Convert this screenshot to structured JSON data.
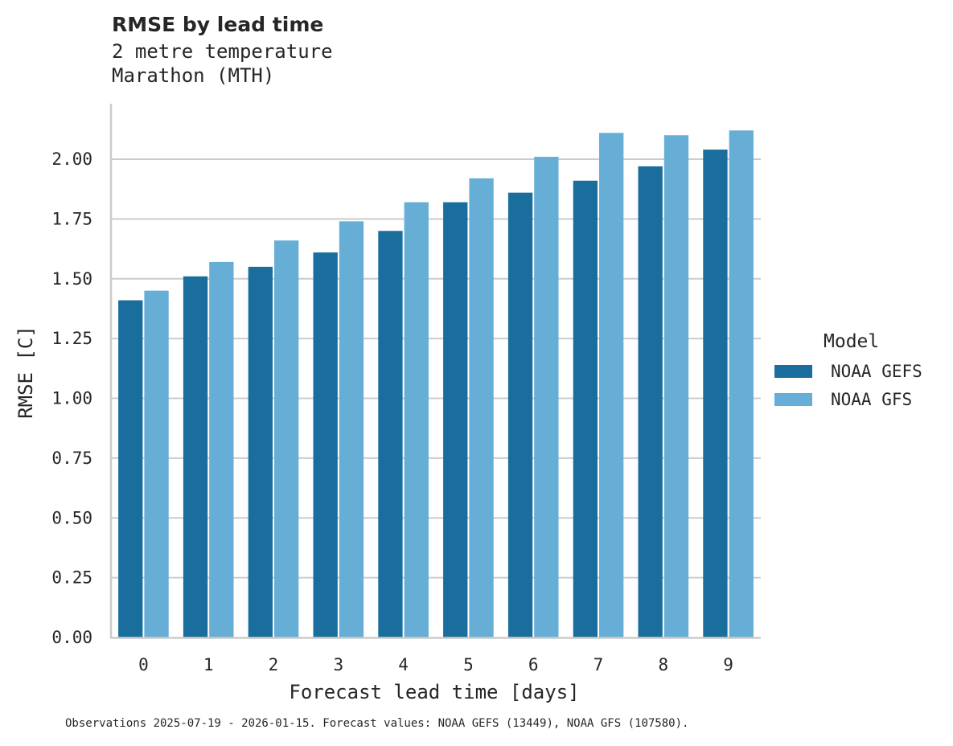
{
  "header": {
    "title": "RMSE by lead time",
    "subtitle_line1": "2 metre temperature",
    "subtitle_line2": "Marathon (MTH)"
  },
  "legend": {
    "title": "Model",
    "items": [
      {
        "label": "NOAA GEFS",
        "color": "#1a6e9e"
      },
      {
        "label": "NOAA GFS",
        "color": "#67aed6"
      }
    ]
  },
  "footer": "Observations 2025-07-19 - 2026-01-15. Forecast values: NOAA GEFS (13449), NOAA GFS (107580).",
  "chart_data": {
    "type": "bar",
    "title": "RMSE by lead time",
    "subtitle": "2 metre temperature / Marathon (MTH)",
    "xlabel": "Forecast lead time [days]",
    "ylabel": "RMSE [C]",
    "categories": [
      "0",
      "1",
      "2",
      "3",
      "4",
      "5",
      "6",
      "7",
      "8",
      "9"
    ],
    "series": [
      {
        "name": "NOAA GEFS",
        "color": "#1a6e9e",
        "values": [
          1.41,
          1.51,
          1.55,
          1.61,
          1.7,
          1.82,
          1.86,
          1.91,
          1.97,
          2.04
        ]
      },
      {
        "name": "NOAA GFS",
        "color": "#67aed6",
        "values": [
          1.45,
          1.57,
          1.66,
          1.74,
          1.82,
          1.92,
          2.01,
          2.11,
          2.1,
          2.12
        ]
      }
    ],
    "yticks": [
      "0.00",
      "0.25",
      "0.50",
      "0.75",
      "1.00",
      "1.25",
      "1.50",
      "1.75",
      "2.00"
    ],
    "ylim": [
      0,
      2.23
    ],
    "grid": "y",
    "legend_position": "right"
  }
}
